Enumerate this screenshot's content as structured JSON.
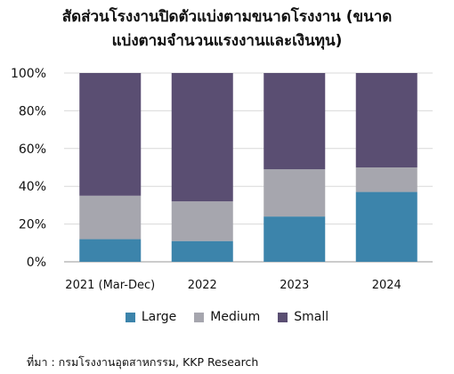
{
  "title_lines": [
    "สัดส่วนโรงงานปิดตัวแบ่งตามขนาดโรงงาน (ขนาด",
    "แบ่งตามจำนวนแรงงานและเงินทุน)"
  ],
  "source": "ที่มา : กรมโรงงานอุตสาหกรรม, KKP Research",
  "chart_data": {
    "type": "bar",
    "stacked": true,
    "categories": [
      "2021 (Mar-Dec)",
      "2022",
      "2023",
      "2024"
    ],
    "series": [
      {
        "name": "Large",
        "color": "#3c84ab",
        "values": [
          12,
          11,
          24,
          37
        ]
      },
      {
        "name": "Medium",
        "color": "#a6a6ae",
        "values": [
          23,
          21,
          25,
          13
        ]
      },
      {
        "name": "Small",
        "color": "#5a4e72",
        "values": [
          65,
          68,
          51,
          50
        ]
      }
    ],
    "ylim": [
      0,
      100
    ],
    "yticks": [
      "0%",
      "20%",
      "40%",
      "60%",
      "80%",
      "100%"
    ],
    "grid": true,
    "legend": "bottom",
    "title": "สัดส่วนโรงงานปิดตัวแบ่งตามขนาดโรงงาน (ขนาดแบ่งตามจำนวนแรงงานและเงินทุน)"
  }
}
